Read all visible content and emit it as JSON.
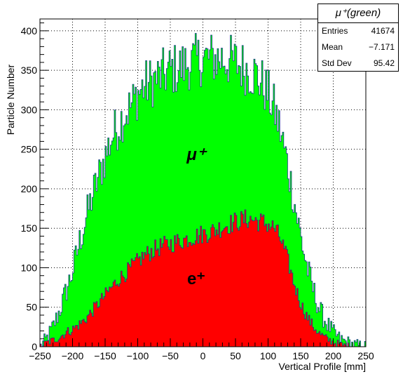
{
  "chart_data": {
    "type": "histogram",
    "xlabel": "Vertical Profile [mm]",
    "ylabel": "Particle Number",
    "xlim": [
      -250,
      250
    ],
    "ylim": [
      0,
      415
    ],
    "grid": true,
    "x_ticks": [
      "−250",
      "−200",
      "−150",
      "−100",
      "−50",
      "0",
      "50",
      "100",
      "150",
      "200",
      "250"
    ],
    "y_ticks": [
      "0",
      "50",
      "100",
      "150",
      "200",
      "250",
      "300",
      "350",
      "400"
    ],
    "annotations": [
      {
        "text": "μ⁺",
        "series": "mu+"
      },
      {
        "text": "e⁺",
        "series": "e+"
      }
    ],
    "bin_width": 2,
    "series": [
      {
        "name": "μ⁺(green)",
        "color": "#00ff00",
        "shape": {
          "center": 5,
          "peak": 375,
          "support": [
            -240,
            245
          ],
          "noise": 18
        },
        "profile": [
          [
            -250,
            0
          ],
          [
            -240,
            10
          ],
          [
            -230,
            25
          ],
          [
            -220,
            45
          ],
          [
            -210,
            70
          ],
          [
            -200,
            95
          ],
          [
            -190,
            130
          ],
          [
            -180,
            160
          ],
          [
            -170,
            190
          ],
          [
            -160,
            215
          ],
          [
            -150,
            240
          ],
          [
            -140,
            265
          ],
          [
            -130,
            280
          ],
          [
            -120,
            295
          ],
          [
            -110,
            305
          ],
          [
            -100,
            320
          ],
          [
            -90,
            330
          ],
          [
            -80,
            335
          ],
          [
            -70,
            340
          ],
          [
            -60,
            345
          ],
          [
            -50,
            350
          ],
          [
            -40,
            352
          ],
          [
            -30,
            355
          ],
          [
            -20,
            360
          ],
          [
            -10,
            362
          ],
          [
            0,
            365
          ],
          [
            10,
            365
          ],
          [
            20,
            365
          ],
          [
            30,
            365
          ],
          [
            40,
            362
          ],
          [
            50,
            360
          ],
          [
            60,
            355
          ],
          [
            70,
            350
          ],
          [
            80,
            345
          ],
          [
            90,
            335
          ],
          [
            100,
            320
          ],
          [
            110,
            300
          ],
          [
            120,
            270
          ],
          [
            130,
            230
          ],
          [
            140,
            185
          ],
          [
            150,
            140
          ],
          [
            160,
            100
          ],
          [
            170,
            70
          ],
          [
            180,
            45
          ],
          [
            190,
            30
          ],
          [
            200,
            18
          ],
          [
            210,
            10
          ],
          [
            220,
            6
          ],
          [
            230,
            3
          ],
          [
            240,
            1
          ],
          [
            250,
            0
          ]
        ]
      },
      {
        "name": "e⁺",
        "color": "#ff0000",
        "profile": [
          [
            -250,
            0
          ],
          [
            -240,
            5
          ],
          [
            -230,
            8
          ],
          [
            -220,
            12
          ],
          [
            -210,
            18
          ],
          [
            -200,
            22
          ],
          [
            -190,
            28
          ],
          [
            -180,
            35
          ],
          [
            -170,
            45
          ],
          [
            -160,
            55
          ],
          [
            -150,
            65
          ],
          [
            -140,
            75
          ],
          [
            -130,
            85
          ],
          [
            -120,
            92
          ],
          [
            -110,
            100
          ],
          [
            -100,
            108
          ],
          [
            -90,
            115
          ],
          [
            -80,
            120
          ],
          [
            -70,
            125
          ],
          [
            -60,
            128
          ],
          [
            -50,
            130
          ],
          [
            -40,
            133
          ],
          [
            -30,
            135
          ],
          [
            -20,
            138
          ],
          [
            -10,
            140
          ],
          [
            0,
            143
          ],
          [
            10,
            145
          ],
          [
            20,
            148
          ],
          [
            30,
            152
          ],
          [
            40,
            155
          ],
          [
            50,
            158
          ],
          [
            60,
            160
          ],
          [
            70,
            162
          ],
          [
            80,
            160
          ],
          [
            90,
            158
          ],
          [
            100,
            155
          ],
          [
            110,
            150
          ],
          [
            120,
            135
          ],
          [
            130,
            110
          ],
          [
            140,
            80
          ],
          [
            150,
            55
          ],
          [
            160,
            38
          ],
          [
            170,
            25
          ],
          [
            180,
            16
          ],
          [
            190,
            10
          ],
          [
            200,
            6
          ],
          [
            210,
            3
          ],
          [
            220,
            1
          ],
          [
            230,
            0
          ],
          [
            250,
            0
          ]
        ]
      }
    ],
    "stats": {
      "title": "μ⁺(green)",
      "rows": [
        {
          "label": "Entries",
          "value": "41674"
        },
        {
          "label": "Mean",
          "value": "−7.171"
        },
        {
          "label": "Std Dev",
          "value": "95.42"
        }
      ]
    }
  }
}
